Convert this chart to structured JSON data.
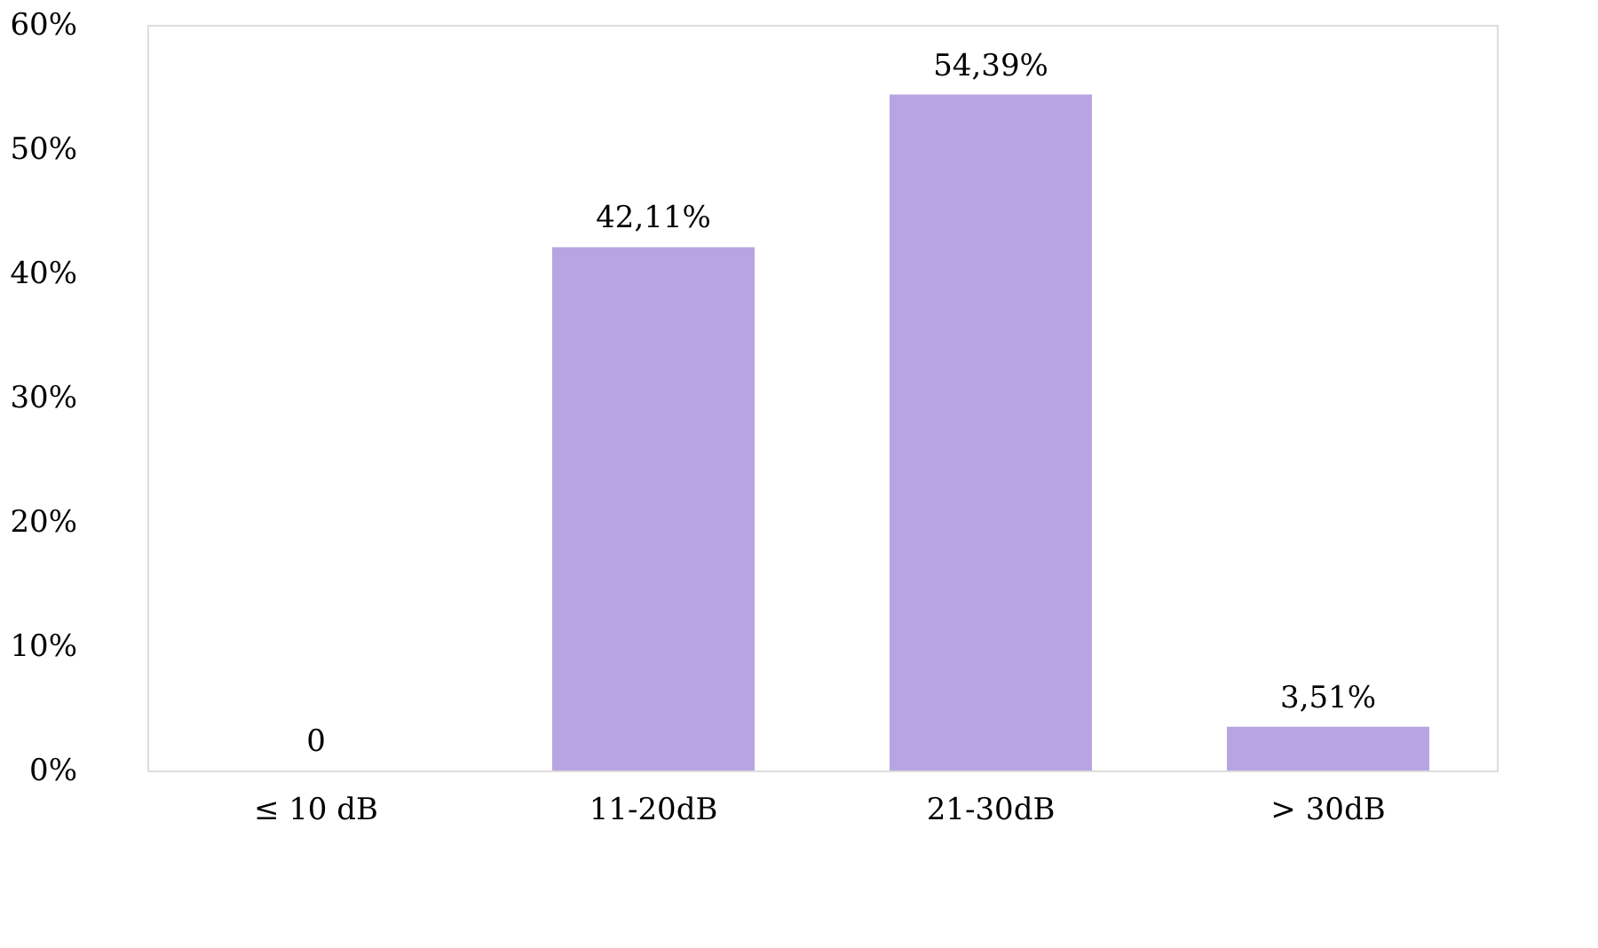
{
  "chart_data": {
    "type": "bar",
    "categories": [
      "≤ 10 dB",
      "11-20dB",
      "21-30dB",
      "> 30dB"
    ],
    "values": [
      0,
      42.11,
      54.39,
      3.51
    ],
    "value_labels": [
      "0",
      "42,11%",
      "54,39%",
      "3,51%"
    ],
    "color": "#b8a4e0",
    "ylim": [
      0,
      60
    ],
    "yticks": [
      {
        "value": 0,
        "label": "0%"
      },
      {
        "value": 10,
        "label": "10%"
      },
      {
        "value": 20,
        "label": "20%"
      },
      {
        "value": 30,
        "label": "30%"
      },
      {
        "value": 40,
        "label": "40%"
      },
      {
        "value": 50,
        "label": "50%"
      },
      {
        "value": 60,
        "label": "60%"
      }
    ],
    "grid": false
  }
}
